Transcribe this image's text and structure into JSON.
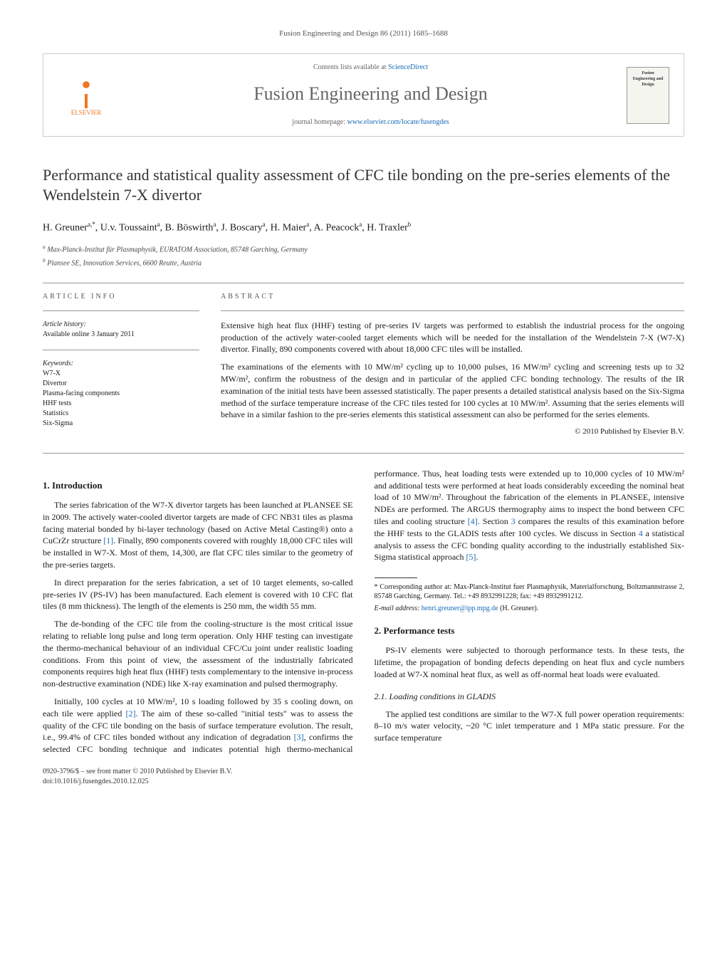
{
  "journal_ref": "Fusion Engineering and Design 86 (2011) 1685–1688",
  "header": {
    "contents_prefix": "Contents lists available at ",
    "contents_link": "ScienceDirect",
    "journal_name": "Fusion Engineering and Design",
    "homepage_prefix": "journal homepage: ",
    "homepage_link": "www.elsevier.com/locate/fusengdes",
    "publisher": "ELSEVIER",
    "cover_title": "Fusion Engineering and Design"
  },
  "title": "Performance and statistical quality assessment of CFC tile bonding on the pre-series elements of the Wendelstein 7-X divertor",
  "authors_html": "H. Greuner<sup>a,*</sup>, U.v. Toussaint<sup>a</sup>, B. Böswirth<sup>a</sup>, J. Boscary<sup>a</sup>, H. Maier<sup>a</sup>, A. Peacock<sup>a</sup>, H. Traxler<sup>b</sup>",
  "affiliations": [
    {
      "sup": "a",
      "text": "Max-Planck-Institut für Plasmaphysik, EURATOM Association, 85748 Garching, Germany"
    },
    {
      "sup": "b",
      "text": "Plansee SE, Innovation Services, 6600 Reutte, Austria"
    }
  ],
  "meta": {
    "info_heading": "ARTICLE INFO",
    "history_label": "Article history:",
    "history_value": "Available online 3 January 2011",
    "keywords_label": "Keywords:",
    "keywords": [
      "W7-X",
      "Divertor",
      "Plasma-facing components",
      "HHF tests",
      "Statistics",
      "Six-Sigma"
    ]
  },
  "abstract": {
    "heading": "ABSTRACT",
    "paragraphs": [
      "Extensive high heat flux (HHF) testing of pre-series IV targets was performed to establish the industrial process for the ongoing production of the actively water-cooled target elements which will be needed for the installation of the Wendelstein 7-X (W7-X) divertor. Finally, 890 components covered with about 18,000 CFC tiles will be installed.",
      "The examinations of the elements with 10 MW/m² cycling up to 10,000 pulses, 16 MW/m² cycling and screening tests up to 32 MW/m², confirm the robustness of the design and in particular of the applied CFC bonding technology. The results of the IR examination of the initial tests have been assessed statistically. The paper presents a detailed statistical analysis based on the Six-Sigma method of the surface temperature increase of the CFC tiles tested for 100 cycles at 10 MW/m². Assuming that the series elements will behave in a similar fashion to the pre-series elements this statistical assessment can also be performed for the series elements."
    ],
    "copyright": "© 2010 Published by Elsevier B.V."
  },
  "sections": {
    "s1_heading": "1. Introduction",
    "s1_p1": "The series fabrication of the W7-X divertor targets has been launched at PLANSEE SE in 2009. The actively water-cooled divertor targets are made of CFC NB31 tiles as plasma facing material bonded by bi-layer technology (based on Active Metal Casting®) onto a CuCrZr structure [1]. Finally, 890 components covered with roughly 18,000 CFC tiles will be installed in W7-X. Most of them, 14,300, are flat CFC tiles similar to the geometry of the pre-series targets.",
    "s1_p2": "In direct preparation for the series fabrication, a set of 10 target elements, so-called pre-series IV (PS-IV) has been manufactured. Each element is covered with 10 CFC flat tiles (8 mm thickness). The length of the elements is 250 mm, the width 55 mm.",
    "s1_p3": "The de-bonding of the CFC tile from the cooling-structure is the most critical issue relating to reliable long pulse and long term operation. Only HHF testing can investigate the thermo-mechanical behaviour of an individual CFC/Cu joint under realistic loading conditions. From this point of view, the assessment of the industrially fabricated components requires high heat flux (HHF) tests complementary to the intensive in-process non-destructive examination (NDE) like X-ray examination and pulsed thermography.",
    "s1_p4": "Initially, 100 cycles at 10 MW/m², 10 s loading followed by 35 s cooling down, on each tile were applied [2]. The aim of these so-called \"initial tests\" was to assess the quality of the CFC tile bonding on the basis of surface temperature evolution. The result, i.e., 99.4% of CFC tiles bonded without any indication of degradation [3], confirms the selected CFC bonding technique and indicates potential high thermo-mechanical performance. Thus, heat loading tests were extended up to 10,000 cycles of 10 MW/m² and additional tests were performed at heat loads considerably exceeding the nominal heat load of 10 MW/m². Throughout the fabrication of the elements in PLANSEE, intensive NDEs are performed. The ARGUS thermography aims to inspect the bond between CFC tiles and cooling structure [4]. Section 3 compares the results of this examination before the HHF tests to the GLADIS tests after 100 cycles. We discuss in Section 4 a statistical analysis to assess the CFC bonding quality according to the industrially established Six-Sigma statistical approach [5].",
    "s2_heading": "2. Performance tests",
    "s2_p1": "PS-IV elements were subjected to thorough performance tests. In these tests, the lifetime, the propagation of bonding defects depending on heat flux and cycle numbers loaded at W7-X nominal heat flux, as well as off-normal heat loads were evaluated.",
    "s21_heading": "2.1. Loading conditions in GLADIS",
    "s21_p1": "The applied test conditions are similar to the W7-X full power operation requirements: 8–10 m/s water velocity, ~20 °C inlet temperature and 1 MPa static pressure. For the surface temperature"
  },
  "footnotes": {
    "corr": "* Corresponding author at: Max-Planck-Institut fuer Plasmaphysik, Materialforschung, Boltzmannstrasse 2, 85748 Garching, Germany. Tel.: +49 8932991228; fax: +49 8932991212.",
    "email_label": "E-mail address:",
    "email": "henri.greuner@ipp.mpg.de",
    "email_suffix": "(H. Greuner)."
  },
  "footer": {
    "line1": "0920-3796/$ – see front matter © 2010 Published by Elsevier B.V.",
    "line2": "doi:10.1016/j.fusengdes.2010.12.025"
  },
  "colors": {
    "link": "#1a6bb8",
    "elsevier": "#ee7722",
    "heading": "#333333",
    "rule": "#999999"
  }
}
